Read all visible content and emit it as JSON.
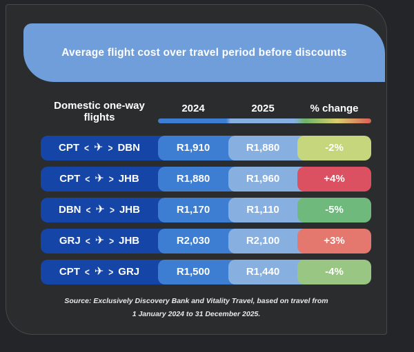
{
  "header": {
    "title": "Average flight cost over travel period before discounts"
  },
  "table": {
    "row_header": {
      "line1": "Domestic one-way",
      "line2": "flights"
    },
    "columns": [
      "2024",
      "2025",
      "% change"
    ],
    "rows": [
      {
        "from": "CPT",
        "to": "DBN",
        "cost_2024": "R1,910",
        "cost_2025": "R1,880",
        "change": "-2%",
        "change_color": "#c6d67d"
      },
      {
        "from": "CPT",
        "to": "JHB",
        "cost_2024": "R1,880",
        "cost_2025": "R1,960",
        "change": "+4%",
        "change_color": "#dc5161"
      },
      {
        "from": "DBN",
        "to": "JHB",
        "cost_2024": "R1,170",
        "cost_2025": "R1,110",
        "change": "-5%",
        "change_color": "#6fb97d"
      },
      {
        "from": "GRJ",
        "to": "JHB",
        "cost_2024": "R2,030",
        "cost_2025": "R2,100",
        "change": "+3%",
        "change_color": "#e4786e"
      },
      {
        "from": "CPT",
        "to": "GRJ",
        "cost_2024": "R1,500",
        "cost_2025": "R1,440",
        "change": "-4%",
        "change_color": "#99c783"
      }
    ]
  },
  "icons": {
    "plane": "✈",
    "left_angle": "<",
    "right_angle": ">"
  },
  "colors": {
    "banner_blue": "#6f9edb",
    "route_blue": "#1445a7",
    "col_2024_blue": "#3e7ed2",
    "col_2025_blue": "#87b0e0",
    "gradient_green": "#6fb36a",
    "gradient_yellow": "#d9ce6e",
    "gradient_red": "#d95f55"
  },
  "source": {
    "line1": "Source: Exclusively Discovery Bank and Vitality Travel, based on travel from",
    "line2": "1 January 2024 to 31 December 2025."
  },
  "chart_data": {
    "type": "table",
    "title": "Average flight cost over travel period before discounts",
    "columns": [
      "Domestic one-way flights",
      "2024",
      "2025",
      "% change"
    ],
    "rows": [
      [
        "CPT-DBN",
        1910,
        1880,
        -2
      ],
      [
        "CPT-JHB",
        1880,
        1960,
        4
      ],
      [
        "DBN-JHB",
        1170,
        1110,
        -5
      ],
      [
        "GRJ-JHB",
        2030,
        2100,
        3
      ],
      [
        "CPT-GRJ",
        1500,
        1440,
        -4
      ]
    ],
    "units": "R (South African Rand); change in %",
    "source": "Exclusively Discovery Bank and Vitality Travel, based on travel from 1 January 2024 to 31 December 2025."
  }
}
